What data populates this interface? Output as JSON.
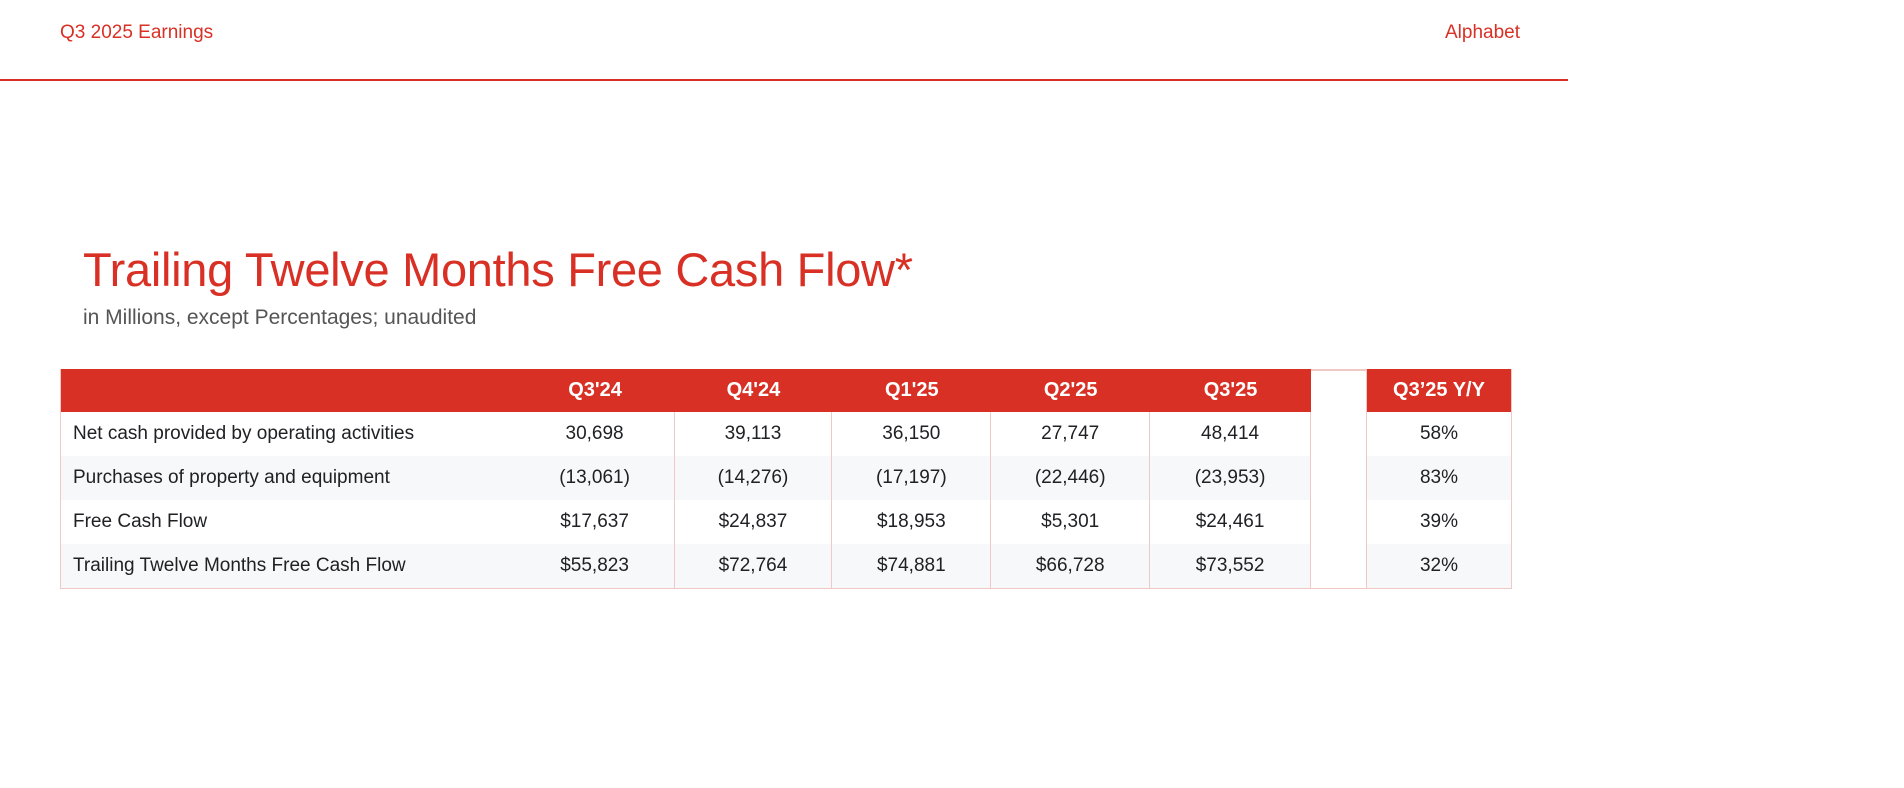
{
  "header": {
    "left_text": "Q3 2025 Earnings",
    "right_text": "Alphabet"
  },
  "title": "Trailing Twelve Months Free Cash Flow*",
  "subtitle": "in Millions, except Percentages; unaudited",
  "table": {
    "columns": [
      "Q3'24",
      "Q4'24",
      "Q1'25",
      "Q2'25",
      "Q3'25"
    ],
    "yy_header": "Q3’25 Y/Y",
    "rows": [
      {
        "label": "Net cash provided by operating activities",
        "values": [
          "30,698",
          "39,113",
          "36,150",
          "27,747",
          "48,414"
        ],
        "yy": "58%"
      },
      {
        "label": "Purchases of property and equipment",
        "values": [
          "(13,061)",
          "(14,276)",
          "(17,197)",
          "(22,446)",
          "(23,953)"
        ],
        "yy": "83%"
      },
      {
        "label": "Free Cash Flow",
        "values": [
          "$17,637",
          "$24,837",
          "$18,953",
          "$5,301",
          "$24,461"
        ],
        "yy": "39%"
      },
      {
        "label": "Trailing Twelve Months Free Cash Flow",
        "values": [
          "$55,823",
          "$72,764",
          "$74,881",
          "$66,728",
          "$73,552"
        ],
        "yy": "32%"
      }
    ]
  },
  "colors": {
    "accent": "#d93025",
    "row_alt": "#f7f8fa",
    "border": "#f0c9c6"
  }
}
